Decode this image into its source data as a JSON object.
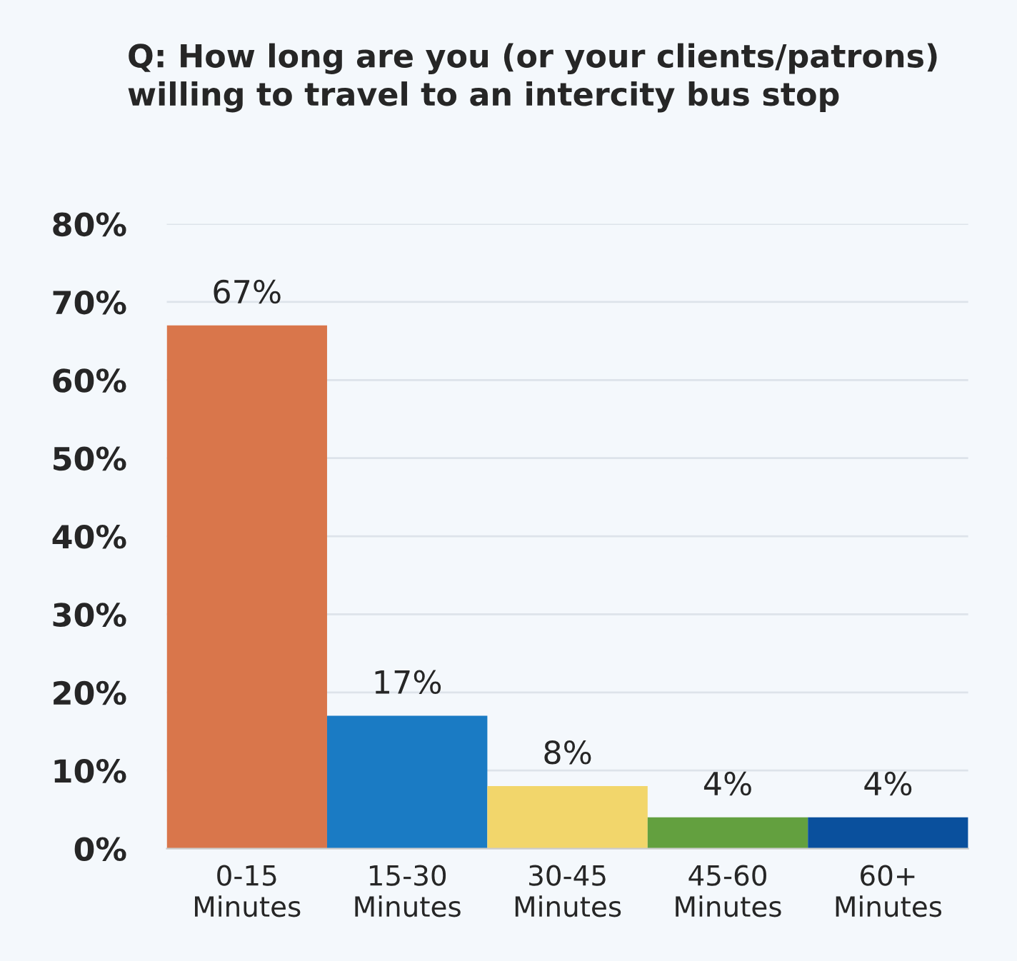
{
  "chart_data": {
    "type": "bar",
    "title": "Q: How long are you (or your clients/patrons) willing to travel to an intercity bus stop",
    "categories": [
      "0-15\nMinutes",
      "15-30\nMinutes",
      "30-45\nMinutes",
      "45-60\nMinutes",
      "60+\nMinutes"
    ],
    "values": [
      67,
      17,
      8,
      4,
      4
    ],
    "value_labels": [
      "67%",
      "17%",
      "8%",
      "4%",
      "4%"
    ],
    "colors": [
      "#d9764b",
      "#1a7bc4",
      "#f2d66b",
      "#63a03f",
      "#0a509d"
    ],
    "ylim": [
      0,
      80
    ],
    "yticks": [
      {
        "value": 0,
        "label": "0%"
      },
      {
        "value": 10,
        "label": "10%"
      },
      {
        "value": 20,
        "label": "20%"
      },
      {
        "value": 30,
        "label": "30%"
      },
      {
        "value": 40,
        "label": "40%"
      },
      {
        "value": 50,
        "label": "50%"
      },
      {
        "value": 60,
        "label": "60%"
      },
      {
        "value": 70,
        "label": "70%"
      },
      {
        "value": 80,
        "label": "80%"
      }
    ],
    "grid": "y"
  }
}
